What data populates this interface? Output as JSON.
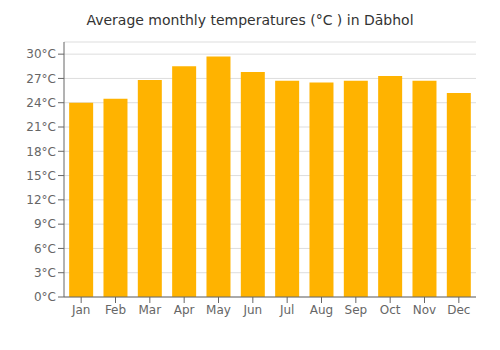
{
  "chart_data": {
    "type": "bar",
    "title": "Average monthly temperatures (°C ) in Dābhol",
    "categories": [
      "Jan",
      "Feb",
      "Mar",
      "Apr",
      "May",
      "Jun",
      "Jul",
      "Aug",
      "Sep",
      "Oct",
      "Nov",
      "Dec"
    ],
    "values": [
      24.0,
      24.5,
      26.8,
      28.5,
      29.7,
      27.8,
      26.7,
      26.5,
      26.7,
      27.3,
      26.7,
      25.2
    ],
    "color": "#FFB300",
    "ylim": [
      0,
      31.5
    ],
    "yticks": [
      {
        "value": 0,
        "label": "0°C"
      },
      {
        "value": 3,
        "label": "3°C"
      },
      {
        "value": 6,
        "label": "6°C"
      },
      {
        "value": 9,
        "label": "9°C"
      },
      {
        "value": 12,
        "label": "12°C"
      },
      {
        "value": 15,
        "label": "15°C"
      },
      {
        "value": 18,
        "label": "18°C"
      },
      {
        "value": 21,
        "label": "21°C"
      },
      {
        "value": 24,
        "label": "24°C"
      },
      {
        "value": 27,
        "label": "27°C"
      },
      {
        "value": 30,
        "label": "30°C"
      }
    ],
    "grid": true
  }
}
